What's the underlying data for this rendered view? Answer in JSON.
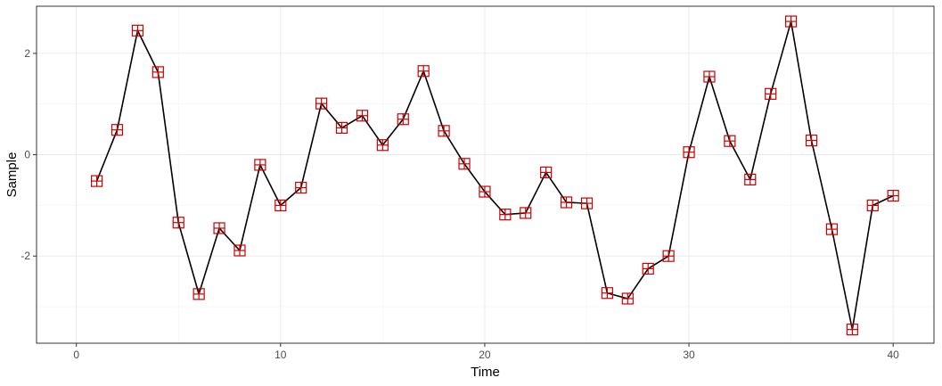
{
  "chart_data": {
    "type": "line",
    "title": "",
    "xlabel": "Time",
    "ylabel": "Sample",
    "xlim": [
      -1.95,
      42.0
    ],
    "ylim": [
      -3.72,
      2.93
    ],
    "x_ticks": [
      0,
      10,
      20,
      30,
      40
    ],
    "x_tick_labels": [
      "0",
      "10",
      "20",
      "30",
      "40"
    ],
    "y_ticks": [
      -2,
      0,
      2
    ],
    "y_tick_labels": [
      "-2",
      "0",
      "2"
    ],
    "grid": true,
    "legend": "none",
    "line_color": "#000000",
    "marker_color": "#cc0000",
    "marker_shape": "square-cross",
    "series": [
      {
        "x": [
          1,
          2,
          3,
          4,
          5,
          6,
          7,
          8,
          9,
          10,
          11,
          12,
          13,
          14,
          15,
          16,
          17,
          18,
          19,
          20,
          21,
          22,
          23,
          24,
          25,
          26,
          27,
          28,
          29,
          30,
          31,
          32,
          33,
          34,
          35,
          36,
          37,
          38,
          39,
          40
        ],
        "values": [
          -0.52,
          0.49,
          2.45,
          1.63,
          -1.34,
          -2.75,
          -1.45,
          -1.89,
          -0.2,
          -1.0,
          -0.65,
          1.01,
          0.53,
          0.77,
          0.19,
          0.7,
          1.65,
          0.47,
          -0.18,
          -0.73,
          -1.18,
          -1.15,
          -0.35,
          -0.94,
          -0.96,
          -2.73,
          -2.84,
          -2.25,
          -2.0,
          0.05,
          1.54,
          0.27,
          -0.49,
          1.2,
          2.63,
          0.28,
          -1.47,
          -3.45,
          -1.0,
          -0.81
        ]
      }
    ]
  }
}
